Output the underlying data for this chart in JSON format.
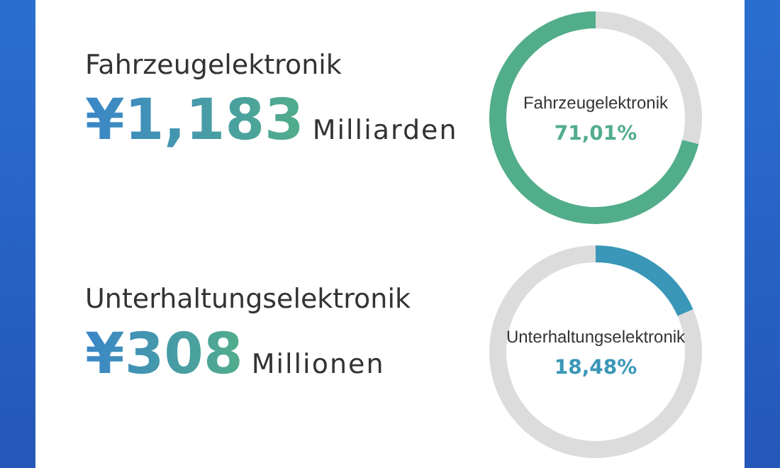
{
  "chart_data": [
    {
      "type": "donut",
      "title": "Fahrzeugelektronik",
      "annotations": [
        "¥1,183",
        "Milliarden"
      ],
      "categories": [
        null,
        "Fahrzeugelektronik"
      ],
      "values": [
        28.99,
        71.01
      ],
      "colors": [
        "#dcdcdc",
        "#52ad8b"
      ],
      "value_labels": [
        null,
        "71,01%"
      ]
    },
    {
      "type": "donut",
      "title": "Unterhaltungselektronik",
      "annotations": [
        "¥308",
        "Millionen"
      ],
      "categories": [
        "Unterhaltungselektronik",
        null
      ],
      "values": [
        18.48,
        81.52
      ],
      "colors": [
        "#3a97b8",
        "#dcdcdc"
      ],
      "value_labels": [
        "18,48%",
        null
      ]
    }
  ]
}
